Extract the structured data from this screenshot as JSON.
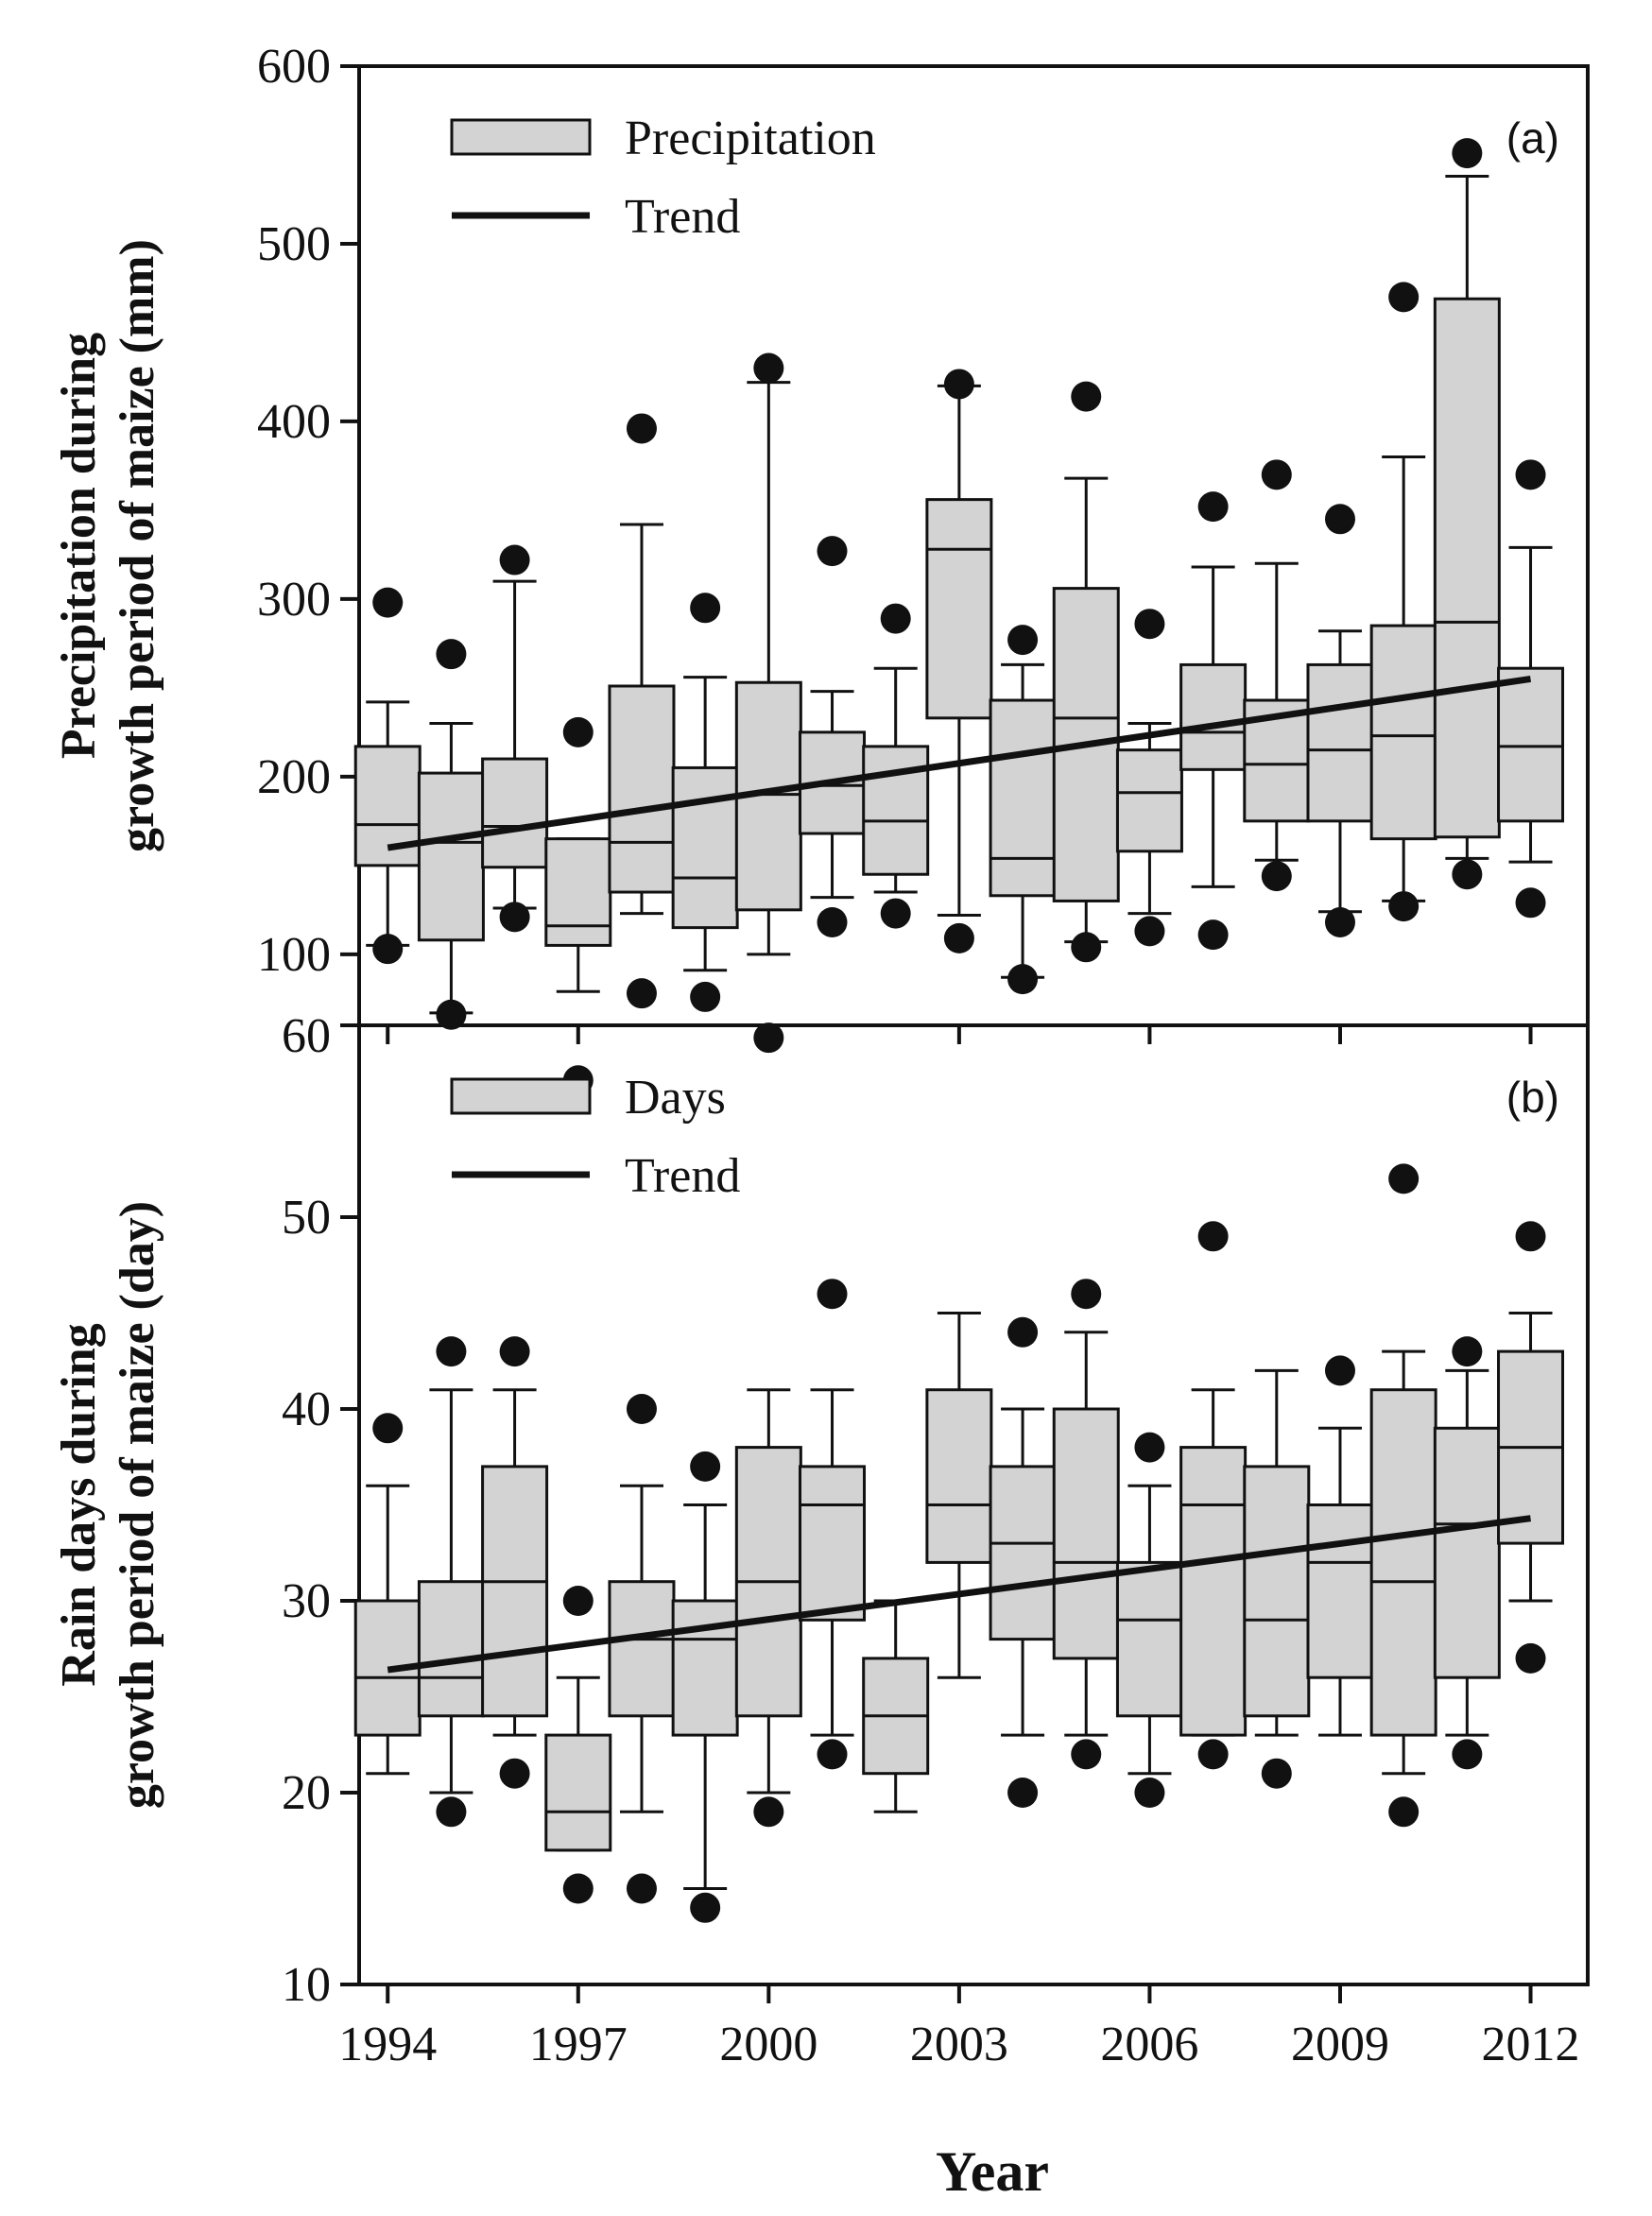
{
  "figure": {
    "xlabel": "Year",
    "colors": {
      "box_fill": "#d3d3d3",
      "stroke": "#111111",
      "trend": "#111111"
    }
  },
  "chart_data": [
    {
      "type": "box",
      "panel_label": "(a)",
      "ylabel_lines": [
        "Precipitation during",
        "growth period of maize (mm)"
      ],
      "ylim": [
        60,
        600
      ],
      "yticks": [
        60,
        100,
        200,
        300,
        400,
        500,
        600
      ],
      "xlim": [
        1993.55,
        2012.9
      ],
      "xticks": [
        1994,
        1997,
        2000,
        2003,
        2006,
        2009,
        2012
      ],
      "legend": {
        "position": "top-left",
        "box_label": "Precipitation",
        "line_label": "Trend"
      },
      "trend": {
        "x": [
          1994,
          2012
        ],
        "y": [
          160,
          255
        ]
      },
      "boxes": [
        {
          "year": 1994,
          "whisker_low": 105,
          "q1": 150,
          "median": 173,
          "q3": 217,
          "whisker_high": 242,
          "outliers": [
            103,
            298
          ]
        },
        {
          "year": 1995,
          "whisker_low": 67,
          "q1": 108,
          "median": 163,
          "q3": 202,
          "whisker_high": 230,
          "outliers": [
            66,
            269
          ]
        },
        {
          "year": 1996,
          "whisker_low": 126,
          "q1": 149,
          "median": 172,
          "q3": 210,
          "whisker_high": 310,
          "outliers": [
            121,
            322
          ]
        },
        {
          "year": 1997,
          "whisker_low": 79,
          "q1": 105,
          "median": 116,
          "q3": 165,
          "whisker_high": 165,
          "outliers": [
            29,
            225
          ]
        },
        {
          "year": 1998,
          "whisker_low": 123,
          "q1": 135,
          "median": 163,
          "q3": 251,
          "whisker_high": 342,
          "outliers": [
            78,
            396
          ]
        },
        {
          "year": 1999,
          "whisker_low": 91,
          "q1": 115,
          "median": 143,
          "q3": 205,
          "whisker_high": 256,
          "outliers": [
            76,
            295
          ]
        },
        {
          "year": 2000,
          "whisker_low": 100,
          "q1": 125,
          "median": 190,
          "q3": 253,
          "whisker_high": 422,
          "outliers": [
            53,
            430
          ]
        },
        {
          "year": 2001,
          "whisker_low": 132,
          "q1": 168,
          "median": 195,
          "q3": 225,
          "whisker_high": 248,
          "outliers": [
            118,
            327
          ]
        },
        {
          "year": 2002,
          "whisker_low": 135,
          "q1": 145,
          "median": 175,
          "q3": 217,
          "whisker_high": 261,
          "outliers": [
            123,
            289
          ]
        },
        {
          "year": 2003,
          "whisker_low": 122,
          "q1": 233,
          "median": 328,
          "q3": 356,
          "whisker_high": 420,
          "outliers": [
            109,
            421
          ]
        },
        {
          "year": 2004,
          "whisker_low": 87,
          "q1": 133,
          "median": 154,
          "q3": 243,
          "whisker_high": 263,
          "outliers": [
            86,
            277
          ]
        },
        {
          "year": 2005,
          "whisker_low": 107,
          "q1": 130,
          "median": 233,
          "q3": 306,
          "whisker_high": 368,
          "outliers": [
            104,
            414
          ]
        },
        {
          "year": 2006,
          "whisker_low": 123,
          "q1": 158,
          "median": 191,
          "q3": 215,
          "whisker_high": 230,
          "outliers": [
            113,
            286
          ]
        },
        {
          "year": 2007,
          "whisker_low": 138,
          "q1": 204,
          "median": 225,
          "q3": 263,
          "whisker_high": 318,
          "outliers": [
            111,
            352
          ]
        },
        {
          "year": 2008,
          "whisker_low": 153,
          "q1": 175,
          "median": 207,
          "q3": 243,
          "whisker_high": 320,
          "outliers": [
            144,
            370
          ]
        },
        {
          "year": 2009,
          "whisker_low": 124,
          "q1": 175,
          "median": 215,
          "q3": 263,
          "whisker_high": 282,
          "outliers": [
            118,
            345
          ]
        },
        {
          "year": 2010,
          "whisker_low": 130,
          "q1": 165,
          "median": 223,
          "q3": 285,
          "whisker_high": 380,
          "outliers": [
            127,
            470
          ]
        },
        {
          "year": 2011,
          "whisker_low": 154,
          "q1": 166,
          "median": 287,
          "q3": 469,
          "whisker_high": 538,
          "outliers": [
            145,
            551
          ]
        },
        {
          "year": 2012,
          "whisker_low": 152,
          "q1": 175,
          "median": 217,
          "q3": 261,
          "whisker_high": 329,
          "outliers": [
            129,
            370
          ]
        }
      ]
    },
    {
      "type": "box",
      "panel_label": "(b)",
      "ylabel_lines": [
        "Rain days during",
        "growth period of maize (day)"
      ],
      "ylim": [
        10,
        60
      ],
      "yticks": [
        10,
        20,
        30,
        40,
        50,
        60
      ],
      "xlim": [
        1993.55,
        2012.9
      ],
      "xticks": [
        1994,
        1997,
        2000,
        2003,
        2006,
        2009,
        2012
      ],
      "legend": {
        "position": "top-left",
        "box_label": "Days",
        "line_label": "Trend"
      },
      "trend": {
        "x": [
          1994,
          2012
        ],
        "y": [
          26.4,
          34.3
        ]
      },
      "boxes": [
        {
          "year": 1994,
          "whisker_low": 21,
          "q1": 23,
          "median": 26,
          "q3": 30,
          "whisker_high": 36,
          "outliers": [
            39
          ]
        },
        {
          "year": 1995,
          "whisker_low": 20,
          "q1": 24,
          "median": 26,
          "q3": 31,
          "whisker_high": 41,
          "outliers": [
            19,
            43
          ]
        },
        {
          "year": 1996,
          "whisker_low": 23,
          "q1": 24,
          "median": 31,
          "q3": 37,
          "whisker_high": 41,
          "outliers": [
            21,
            43
          ]
        },
        {
          "year": 1997,
          "whisker_low": 17,
          "q1": 17,
          "median": 19,
          "q3": 23,
          "whisker_high": 26,
          "outliers": [
            15,
            30
          ]
        },
        {
          "year": 1998,
          "whisker_low": 19,
          "q1": 24,
          "median": 28,
          "q3": 31,
          "whisker_high": 36,
          "outliers": [
            15,
            40
          ]
        },
        {
          "year": 1999,
          "whisker_low": 15,
          "q1": 23,
          "median": 28,
          "q3": 30,
          "whisker_high": 35,
          "outliers": [
            14,
            37
          ]
        },
        {
          "year": 2000,
          "whisker_low": 20,
          "q1": 24,
          "median": 31,
          "q3": 38,
          "whisker_high": 41,
          "outliers": [
            19
          ]
        },
        {
          "year": 2001,
          "whisker_low": 23,
          "q1": 29,
          "median": 35,
          "q3": 37,
          "whisker_high": 41,
          "outliers": [
            22,
            46
          ]
        },
        {
          "year": 2002,
          "whisker_low": 19,
          "q1": 21,
          "median": 24,
          "q3": 27,
          "whisker_high": 30,
          "outliers": []
        },
        {
          "year": 2003,
          "whisker_low": 26,
          "q1": 32,
          "median": 35,
          "q3": 41,
          "whisker_high": 45,
          "outliers": []
        },
        {
          "year": 2004,
          "whisker_low": 23,
          "q1": 28,
          "median": 33,
          "q3": 37,
          "whisker_high": 40,
          "outliers": [
            20,
            44
          ]
        },
        {
          "year": 2005,
          "whisker_low": 23,
          "q1": 27,
          "median": 32,
          "q3": 40,
          "whisker_high": 44,
          "outliers": [
            22,
            46
          ]
        },
        {
          "year": 2006,
          "whisker_low": 21,
          "q1": 24,
          "median": 29,
          "q3": 32,
          "whisker_high": 36,
          "outliers": [
            20,
            38
          ]
        },
        {
          "year": 2007,
          "whisker_low": 23,
          "q1": 23,
          "median": 35,
          "q3": 38,
          "whisker_high": 41,
          "outliers": [
            22,
            49
          ]
        },
        {
          "year": 2008,
          "whisker_low": 23,
          "q1": 24,
          "median": 29,
          "q3": 37,
          "whisker_high": 42,
          "outliers": [
            21
          ]
        },
        {
          "year": 2009,
          "whisker_low": 23,
          "q1": 26,
          "median": 32,
          "q3": 35,
          "whisker_high": 39,
          "outliers": [
            42
          ]
        },
        {
          "year": 2010,
          "whisker_low": 21,
          "q1": 23,
          "median": 31,
          "q3": 41,
          "whisker_high": 43,
          "outliers": [
            19,
            52
          ]
        },
        {
          "year": 2011,
          "whisker_low": 23,
          "q1": 26,
          "median": 34,
          "q3": 39,
          "whisker_high": 42,
          "outliers": [
            22,
            43
          ]
        },
        {
          "year": 2012,
          "whisker_low": 30,
          "q1": 33,
          "median": 38,
          "q3": 43,
          "whisker_high": 45,
          "outliers": [
            27,
            49
          ]
        }
      ]
    }
  ]
}
